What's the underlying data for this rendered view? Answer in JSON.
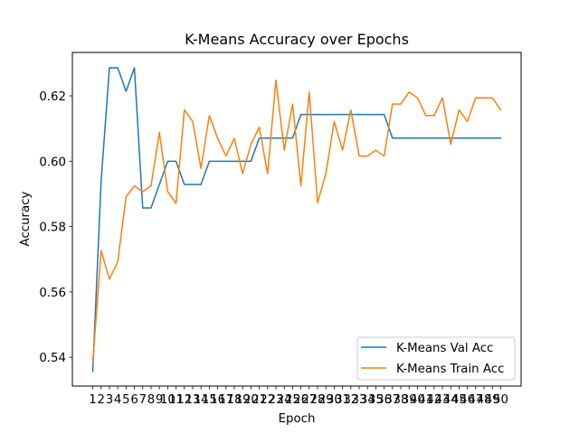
{
  "chart_data": {
    "type": "line",
    "title": "K-Means Accuracy over Epochs",
    "xlabel": "Epoch",
    "ylabel": "Accuracy",
    "x": [
      1,
      2,
      3,
      4,
      5,
      6,
      7,
      8,
      9,
      10,
      11,
      12,
      13,
      14,
      15,
      16,
      17,
      18,
      19,
      20,
      21,
      22,
      23,
      24,
      25,
      26,
      27,
      28,
      29,
      30,
      31,
      32,
      33,
      34,
      35,
      36,
      37,
      38,
      39,
      40,
      41,
      42,
      43,
      44,
      45,
      46,
      47,
      48,
      49,
      50
    ],
    "x_tick_labels": [
      "1",
      "2",
      "3",
      "4",
      "5",
      "6",
      "7",
      "8",
      "9",
      "10",
      "11",
      "12",
      "13",
      "14",
      "15",
      "16",
      "17",
      "18",
      "19",
      "20",
      "21",
      "22",
      "23",
      "24",
      "25",
      "26",
      "27",
      "28",
      "29",
      "30",
      "31",
      "32",
      "33",
      "34",
      "35",
      "36",
      "37",
      "38",
      "39",
      "40",
      "41",
      "42",
      "43",
      "44",
      "45",
      "46",
      "47",
      "48",
      "49",
      "50"
    ],
    "y_ticks": [
      0.54,
      0.56,
      0.58,
      0.6,
      0.62
    ],
    "y_tick_labels": [
      "0.54",
      "0.56",
      "0.58",
      "0.60",
      "0.62"
    ],
    "xlim": [
      -1.45,
      52.45
    ],
    "ylim": [
      0.5312,
      0.6333
    ],
    "grid": false,
    "legend_position": "lower-right",
    "series": [
      {
        "name": "K-Means Val Acc",
        "color": "#1f77b4",
        "values": [
          0.5357,
          0.5938,
          0.6286,
          0.6286,
          0.6214,
          0.6286,
          0.5857,
          0.5857,
          0.5929,
          0.6,
          0.6,
          0.5929,
          0.5929,
          0.5929,
          0.6,
          0.6,
          0.6,
          0.6,
          0.6,
          0.6,
          0.6071,
          0.6071,
          0.6071,
          0.6071,
          0.6071,
          0.6143,
          0.6143,
          0.6143,
          0.6143,
          0.6143,
          0.6143,
          0.6143,
          0.6143,
          0.6143,
          0.6143,
          0.6143,
          0.6071,
          0.6071,
          0.6071,
          0.6071,
          0.6071,
          0.6071,
          0.6071,
          0.6071,
          0.6071,
          0.6071,
          0.6071,
          0.6071,
          0.6071,
          0.6071
        ]
      },
      {
        "name": "K-Means Train Acc",
        "color": "#ff7f0e",
        "values": [
          0.5384,
          0.5727,
          0.5639,
          0.5693,
          0.5891,
          0.5925,
          0.5907,
          0.5925,
          0.6088,
          0.5907,
          0.5871,
          0.6157,
          0.6122,
          0.5978,
          0.614,
          0.607,
          0.6016,
          0.607,
          0.5962,
          0.6052,
          0.6104,
          0.5962,
          0.6248,
          0.6034,
          0.6175,
          0.5925,
          0.6212,
          0.5873,
          0.5962,
          0.6122,
          0.6034,
          0.6157,
          0.6016,
          0.6016,
          0.6034,
          0.6016,
          0.6175,
          0.6175,
          0.6212,
          0.6194,
          0.614,
          0.614,
          0.6194,
          0.6052,
          0.6157,
          0.6122,
          0.6194,
          0.6194,
          0.6194,
          0.6157
        ]
      }
    ]
  }
}
